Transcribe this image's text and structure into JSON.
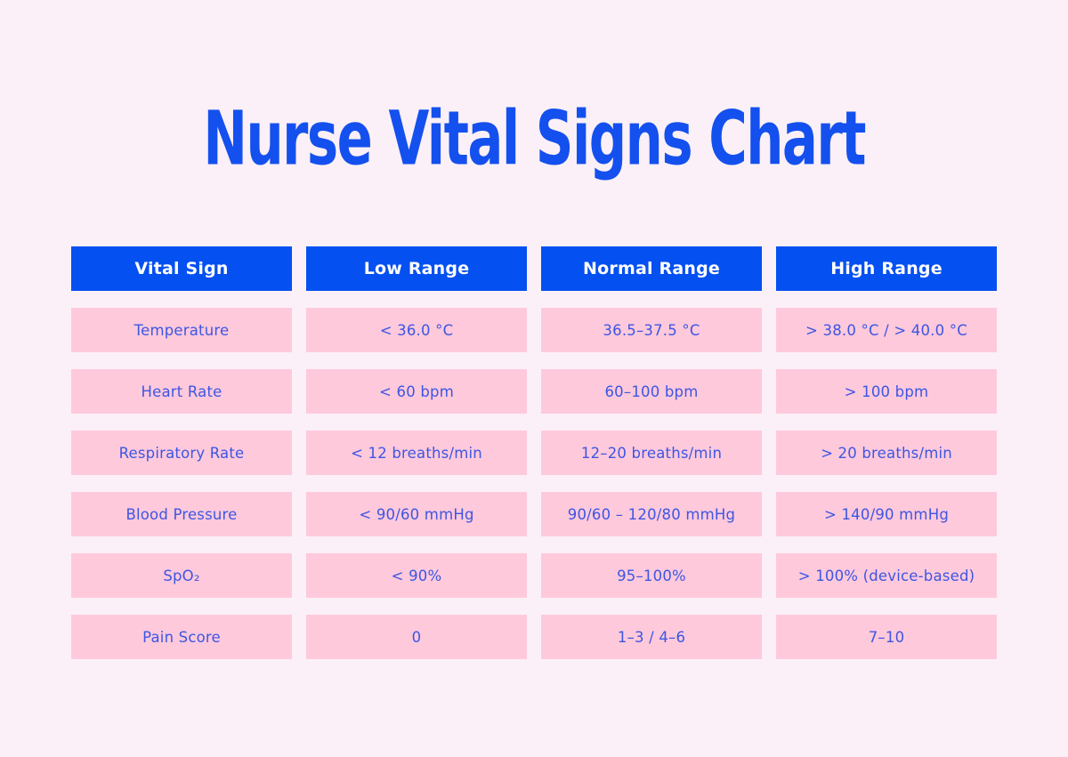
{
  "page": {
    "title": "Nurse Vital Signs Chart"
  },
  "colors": {
    "background": "#FBF0F7",
    "header_bg": "#0550F0",
    "header_text": "#FFFFFF",
    "cell_bg": "#FFC9DC",
    "cell_text": "#3D56E2",
    "title_text": "#1450EE"
  },
  "table": {
    "headers": [
      "Vital Sign",
      "Low Range",
      "Normal Range",
      "High Range"
    ],
    "rows": [
      {
        "vital_sign": "Temperature",
        "low": "< 36.0 °C",
        "normal": "36.5–37.5 °C",
        "high": "> 38.0 °C / > 40.0 °C"
      },
      {
        "vital_sign": "Heart Rate",
        "low": "< 60 bpm",
        "normal": "60–100 bpm",
        "high": "> 100 bpm"
      },
      {
        "vital_sign": "Respiratory Rate",
        "low": "< 12 breaths/min",
        "normal": "12–20 breaths/min",
        "high": "> 20 breaths/min"
      },
      {
        "vital_sign": "Blood Pressure",
        "low": "< 90/60 mmHg",
        "normal": "90/60 – 120/80 mmHg",
        "high": "> 140/90 mmHg"
      },
      {
        "vital_sign": "SpO₂",
        "low": "< 90%",
        "normal": "95–100%",
        "high": "> 100% (device-based)"
      },
      {
        "vital_sign": "Pain Score",
        "low": "0",
        "normal": "1–3 / 4–6",
        "high": "7–10"
      }
    ]
  },
  "chart_data": {
    "type": "table",
    "title": "Nurse Vital Signs Chart",
    "columns": [
      "Vital Sign",
      "Low Range",
      "Normal Range",
      "High Range"
    ],
    "rows": [
      [
        "Temperature",
        "< 36.0 °C",
        "36.5–37.5 °C",
        "> 38.0 °C / > 40.0 °C"
      ],
      [
        "Heart Rate",
        "< 60 bpm",
        "60–100 bpm",
        "> 100 bpm"
      ],
      [
        "Respiratory Rate",
        "< 12 breaths/min",
        "12–20 breaths/min",
        "> 20 breaths/min"
      ],
      [
        "Blood Pressure",
        "< 90/60 mmHg",
        "90/60 – 120/80 mmHg",
        "> 140/90 mmHg"
      ],
      [
        "SpO₂",
        "< 90%",
        "95–100%",
        "> 100% (device-based)"
      ],
      [
        "Pain Score",
        "0",
        "1–3 / 4–6",
        "7–10"
      ]
    ]
  }
}
